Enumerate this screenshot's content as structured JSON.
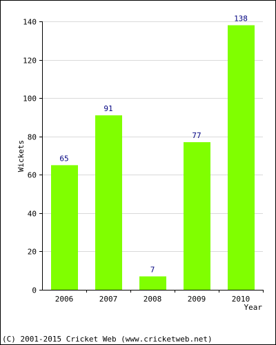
{
  "chart_data": {
    "type": "bar",
    "categories": [
      "2006",
      "2007",
      "2008",
      "2009",
      "2010"
    ],
    "values": [
      65,
      91,
      7,
      77,
      138
    ],
    "data_labels": [
      "65",
      "91",
      "7",
      "77",
      "138"
    ],
    "xlabel": "Year",
    "ylabel": "Wickets",
    "ylim": [
      0,
      140
    ],
    "yticks": [
      0,
      20,
      40,
      60,
      80,
      100,
      120,
      140
    ],
    "grid": "horizontal",
    "bar_color": "#80ff00",
    "grid_color": "#d9d9d9"
  },
  "footer": {
    "credit": "(C) 2001-2015 Cricket Web (www.cricketweb.net)"
  }
}
